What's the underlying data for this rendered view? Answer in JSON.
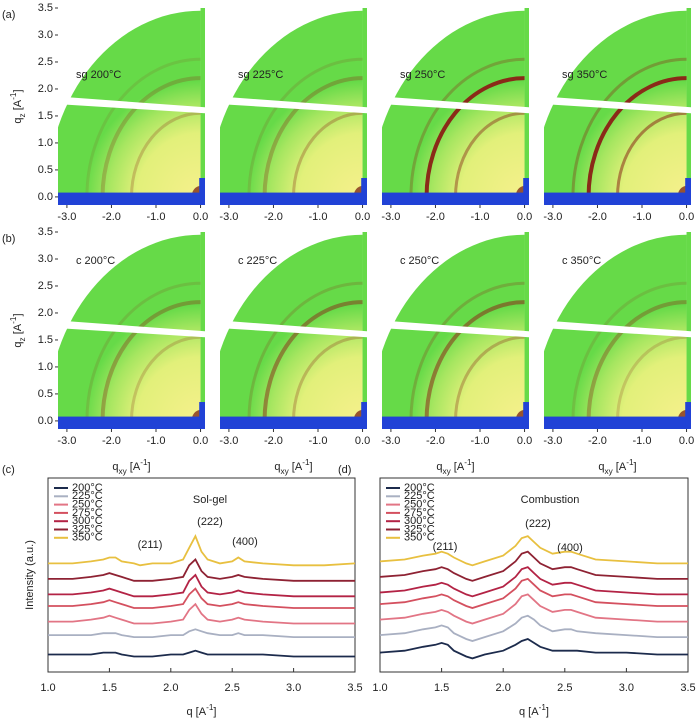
{
  "chart_data": [
    {
      "type": "image_grid",
      "label": "(a)",
      "titles": [
        "sg 200°C",
        "sg 225°C",
        "sg 250°C",
        "sg 350°C"
      ],
      "xlim": [
        -3.2,
        0.1
      ],
      "xticks": [
        {
          "value": -3,
          "label": "-3.0"
        },
        {
          "value": -2,
          "label": "-2.0"
        },
        {
          "value": -1,
          "label": "-1.0"
        },
        {
          "value": 0,
          "label": "0.0"
        }
      ],
      "ylim": [
        -0.15,
        3.5
      ],
      "yticks": [
        {
          "value": 0,
          "label": "0.0"
        },
        0.5,
        {
          "value": 1,
          "label": "1.0"
        },
        1.5,
        {
          "value": 2,
          "label": "2.0"
        },
        2.5,
        {
          "value": 3,
          "label": "3.0"
        },
        3.5
      ],
      "ylabel": [
        "q",
        "z",
        " [A",
        "-1",
        "]"
      ]
    },
    {
      "type": "image_grid",
      "label": "(b)",
      "titles": [
        "c 200°C",
        "c 225°C",
        "c 250°C",
        "c 350°C"
      ],
      "xlim": [
        -3.2,
        0.1
      ],
      "xticks": [
        {
          "value": -3,
          "label": "-3.0"
        },
        {
          "value": -2,
          "label": "-2.0"
        },
        {
          "value": -1,
          "label": "-1.0"
        },
        {
          "value": 0,
          "label": "0.0"
        }
      ],
      "ylim": [
        -0.15,
        3.5
      ],
      "yticks": [
        {
          "value": 0,
          "label": "0.0"
        },
        0.5,
        {
          "value": 1,
          "label": "1.0"
        },
        1.5,
        {
          "value": 2,
          "label": "2.0"
        },
        2.5,
        {
          "value": 3,
          "label": "3.0"
        },
        3.5
      ],
      "ylabel": [
        "q",
        "z",
        " [A",
        "-1",
        "]"
      ],
      "xlabel": [
        "q",
        "xy",
        " [A",
        "-1",
        "]"
      ]
    },
    {
      "type": "line",
      "label": "(c)",
      "title": "Sol-gel",
      "annotations": [
        "(211)",
        "(222)",
        "(400)"
      ],
      "ylabel": "Intensity (a.u.)",
      "xlabel": [
        "q",
        "",
        " [A",
        "-1",
        "]"
      ],
      "legend": "upper left",
      "xlim": [
        1.0,
        3.5
      ],
      "xticks": [
        {
          "value": 1,
          "label": "1.0"
        },
        1.5,
        {
          "value": 2,
          "label": "2.0"
        },
        2.5,
        {
          "value": 3,
          "label": "3.0"
        },
        3.5
      ],
      "ylim": [
        0,
        100
      ],
      "x": [
        1.0,
        1.2,
        1.35,
        1.45,
        1.5,
        1.55,
        1.6,
        1.7,
        1.75,
        1.85,
        2.0,
        2.1,
        2.15,
        2.2,
        2.25,
        2.3,
        2.4,
        2.5,
        2.55,
        2.6,
        2.75,
        3.0,
        3.25,
        3.5
      ],
      "series": [
        {
          "name": "200°C",
          "color": "#1c2b4c",
          "values": [
            9,
            9,
            9,
            10,
            10,
            10,
            9,
            8,
            8,
            8,
            9,
            9,
            10,
            11,
            10,
            9,
            9,
            9,
            9,
            9,
            9,
            8,
            8,
            8
          ]
        },
        {
          "name": "225°C",
          "color": "#a9b0c2",
          "values": [
            19,
            19,
            19,
            20,
            20,
            20,
            19,
            18,
            18,
            18,
            19,
            19,
            21,
            22,
            21,
            20,
            19,
            19,
            20,
            19,
            19,
            18,
            18,
            18
          ]
        },
        {
          "name": "250°C",
          "color": "#e27585",
          "values": [
            26,
            26,
            27,
            28,
            29,
            28,
            27,
            25,
            25,
            25,
            26,
            27,
            32,
            35,
            30,
            27,
            26,
            27,
            28,
            27,
            26,
            25,
            25,
            25
          ]
        },
        {
          "name": "275°C",
          "color": "#d4505f",
          "values": [
            34,
            34,
            35,
            36,
            37,
            36,
            35,
            33,
            33,
            33,
            34,
            35,
            40,
            43,
            38,
            35,
            34,
            35,
            36,
            35,
            34,
            33,
            33,
            33
          ]
        },
        {
          "name": "300°C",
          "color": "#b32345",
          "values": [
            40,
            40,
            41,
            42,
            43,
            42,
            41,
            39,
            39,
            39,
            40,
            41,
            47,
            50,
            44,
            41,
            40,
            41,
            42,
            41,
            40,
            39,
            39,
            39
          ]
        },
        {
          "name": "325°C",
          "color": "#8e2233",
          "values": [
            48,
            48,
            49,
            50,
            51,
            50,
            49,
            47,
            47,
            47,
            48,
            49,
            55,
            58,
            52,
            49,
            48,
            49,
            50,
            49,
            48,
            47,
            47,
            47
          ]
        },
        {
          "name": "350°C",
          "color": "#e8c040",
          "values": [
            56,
            56,
            57,
            58,
            59,
            59,
            57,
            56,
            55,
            56,
            56,
            58,
            64,
            70,
            62,
            58,
            56,
            57,
            59,
            57,
            56,
            55,
            55,
            56
          ]
        }
      ]
    },
    {
      "type": "line",
      "label": "(d)",
      "title": "Combustion",
      "annotations": [
        "(211)",
        "(222)",
        "(400)"
      ],
      "xlabel": [
        "q",
        "",
        " [A",
        "-1",
        "]"
      ],
      "legend": "upper left",
      "xlim": [
        1.0,
        3.5
      ],
      "xticks": [
        {
          "value": 1,
          "label": "1.0"
        },
        1.5,
        {
          "value": 2,
          "label": "2.0"
        },
        2.5,
        {
          "value": 3,
          "label": "3.0"
        },
        3.5
      ],
      "ylim": [
        0,
        100
      ],
      "x": [
        1.0,
        1.2,
        1.35,
        1.45,
        1.5,
        1.55,
        1.6,
        1.7,
        1.75,
        1.85,
        2.0,
        2.1,
        2.15,
        2.2,
        2.25,
        2.3,
        2.4,
        2.5,
        2.55,
        2.6,
        2.75,
        3.0,
        3.25,
        3.5
      ],
      "series": [
        {
          "name": "200°C",
          "color": "#1c2b4c",
          "values": [
            10,
            11,
            13,
            14,
            15,
            14,
            11,
            8,
            7,
            9,
            11,
            14,
            16,
            17,
            15,
            13,
            11,
            11,
            11,
            11,
            10,
            10,
            9,
            9
          ]
        },
        {
          "name": "225°C",
          "color": "#a9b0c2",
          "values": [
            19,
            20,
            22,
            23,
            24,
            23,
            20,
            17,
            16,
            18,
            21,
            25,
            28,
            29,
            27,
            24,
            21,
            22,
            22,
            21,
            20,
            19,
            18,
            18
          ]
        },
        {
          "name": "250°C",
          "color": "#e27585",
          "values": [
            27,
            28,
            30,
            31,
            32,
            31,
            29,
            26,
            25,
            27,
            30,
            35,
            39,
            40,
            37,
            34,
            31,
            32,
            32,
            31,
            28,
            27,
            26,
            26
          ]
        },
        {
          "name": "275°C",
          "color": "#d4505f",
          "values": [
            35,
            36,
            38,
            39,
            40,
            39,
            37,
            34,
            33,
            35,
            38,
            43,
            47,
            48,
            45,
            42,
            39,
            40,
            40,
            39,
            36,
            35,
            34,
            34
          ]
        },
        {
          "name": "300°C",
          "color": "#b32345",
          "values": [
            41,
            42,
            44,
            45,
            46,
            45,
            43,
            40,
            39,
            41,
            44,
            49,
            53,
            54,
            51,
            48,
            45,
            46,
            46,
            45,
            42,
            41,
            40,
            40
          ]
        },
        {
          "name": "325°C",
          "color": "#8e2233",
          "values": [
            49,
            50,
            52,
            53,
            54,
            53,
            51,
            48,
            47,
            49,
            52,
            57,
            61,
            62,
            59,
            56,
            53,
            54,
            54,
            53,
            50,
            49,
            48,
            48
          ]
        },
        {
          "name": "350°C",
          "color": "#e8c040",
          "values": [
            57,
            58,
            60,
            61,
            62,
            61,
            59,
            56,
            55,
            57,
            60,
            65,
            69,
            70,
            67,
            64,
            61,
            62,
            62,
            61,
            58,
            57,
            56,
            56
          ]
        }
      ]
    }
  ]
}
